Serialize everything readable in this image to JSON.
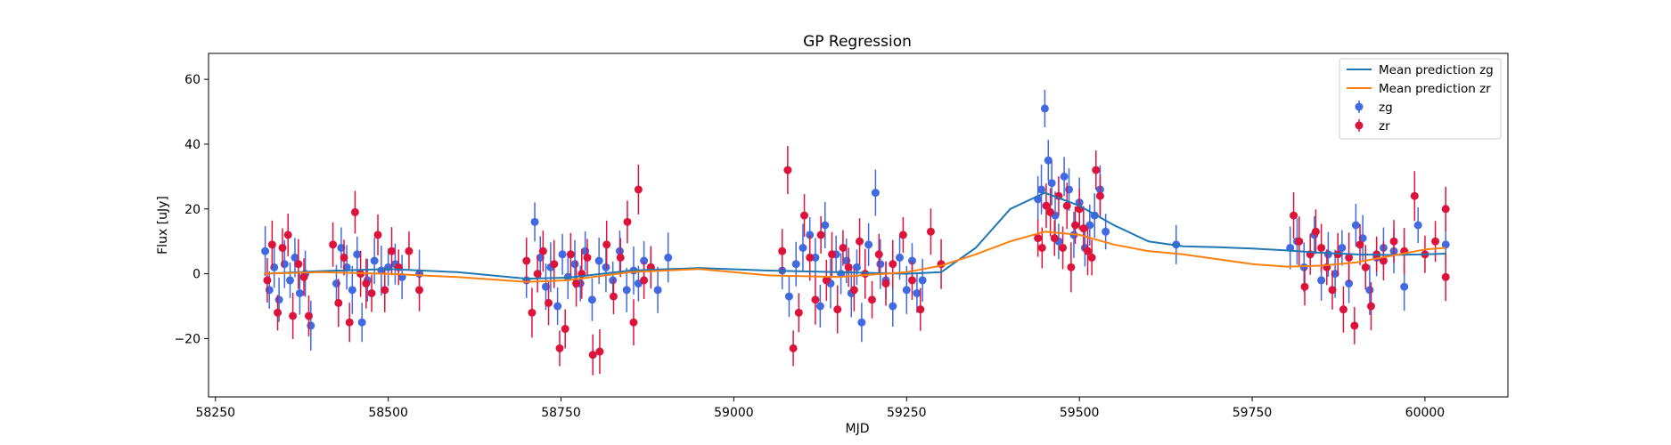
{
  "chart_data": {
    "type": "scatter",
    "title": "GP Regression",
    "xlabel": "MJD",
    "ylabel": "Flux [uJy]",
    "xlim": [
      58240,
      60120
    ],
    "ylim": [
      -38,
      68
    ],
    "xticks": [
      58250,
      58500,
      58750,
      59000,
      59250,
      59500,
      59750,
      60000
    ],
    "yticks": [
      -20,
      0,
      20,
      40,
      60
    ],
    "legend_position": "upper right",
    "grid": false,
    "series": [
      {
        "name": "Mean prediction zg",
        "kind": "line",
        "color": "#1f77b4",
        "x": [
          58320,
          58400,
          58500,
          58600,
          58700,
          58760,
          58850,
          58950,
          59050,
          59150,
          59250,
          59300,
          59350,
          59400,
          59450,
          59500,
          59550,
          59600,
          59650,
          59700,
          59750,
          59800,
          59850,
          59900,
          59950,
          60000,
          60030
        ],
        "y": [
          0,
          0.8,
          1.5,
          0.5,
          -1.5,
          -1.2,
          1.0,
          1.8,
          1.0,
          0.5,
          0.0,
          0.5,
          8,
          20,
          25,
          21,
          15,
          10,
          8.5,
          8.2,
          7.8,
          7.2,
          6.5,
          6.0,
          5.8,
          6.0,
          6.2
        ]
      },
      {
        "name": "Mean prediction zr",
        "kind": "line",
        "color": "#ff7f0e",
        "x": [
          58320,
          58400,
          58500,
          58600,
          58700,
          58760,
          58850,
          58950,
          59050,
          59150,
          59250,
          59300,
          59350,
          59400,
          59450,
          59500,
          59550,
          59600,
          59650,
          59700,
          59750,
          59800,
          59850,
          59900,
          59950,
          60000,
          60030
        ],
        "y": [
          0,
          0.5,
          0,
          -1.0,
          -2.5,
          -2.0,
          0.5,
          1.5,
          -0.5,
          -1.0,
          0.5,
          2.5,
          6,
          10,
          13,
          12,
          9,
          7,
          6,
          4.5,
          3,
          2.2,
          2.5,
          3.5,
          5.5,
          7.5,
          8
        ]
      },
      {
        "name": "zg",
        "kind": "errorbar",
        "color": "#4169e1",
        "x": [
          58322,
          58328,
          58335,
          58342,
          58350,
          58358,
          58365,
          58372,
          58380,
          58388,
          58425,
          58432,
          58440,
          58448,
          58455,
          58462,
          58470,
          58480,
          58490,
          58500,
          58510,
          58520,
          58545,
          58700,
          58712,
          58720,
          58728,
          58735,
          58745,
          58752,
          58760,
          58770,
          58778,
          58785,
          58795,
          58805,
          58815,
          58825,
          58835,
          58845,
          58855,
          58862,
          58870,
          58880,
          58890,
          58905,
          59070,
          59080,
          59090,
          59100,
          59110,
          59118,
          59125,
          59132,
          59140,
          59148,
          59155,
          59163,
          59170,
          59178,
          59185,
          59195,
          59205,
          59212,
          59220,
          59230,
          59240,
          59250,
          59258,
          59265,
          59273,
          59440,
          59445,
          59450,
          59455,
          59460,
          59465,
          59470,
          59478,
          59485,
          59492,
          59500,
          59508,
          59515,
          59522,
          59530,
          59538,
          59640,
          59805,
          59815,
          59825,
          59840,
          59850,
          59860,
          59870,
          59880,
          59890,
          59900,
          59910,
          59920,
          59930,
          59940,
          59955,
          59970,
          59990,
          60030
        ],
        "y": [
          7,
          -5,
          2,
          -8,
          3,
          -2,
          5,
          -6,
          0,
          -16,
          -3,
          8,
          2,
          -5,
          6,
          -15,
          -2,
          4,
          1,
          2,
          3,
          -1,
          0,
          -2,
          16,
          5,
          -4,
          2,
          -10,
          6,
          -1,
          3,
          -3,
          7,
          -8,
          4,
          2,
          -2,
          7,
          -5,
          1,
          -3,
          4,
          2,
          -5,
          5,
          1,
          -7,
          3,
          8,
          12,
          5,
          -10,
          15,
          -3,
          6,
          0,
          4,
          -6,
          2,
          -15,
          9,
          25,
          3,
          -2,
          -10,
          5,
          -5,
          4,
          -6,
          -2,
          23,
          26,
          51,
          35,
          28,
          18,
          10,
          30,
          26,
          12,
          22,
          8,
          15,
          18,
          26,
          13,
          9,
          8,
          10,
          2,
          12,
          -2,
          6,
          0,
          8,
          -3,
          15,
          11,
          -5,
          5,
          8,
          7,
          -4,
          15,
          9
        ]
      },
      {
        "name": "zr",
        "kind": "errorbar",
        "color": "#dc143c",
        "x": [
          58325,
          58332,
          58340,
          58347,
          58355,
          58362,
          58370,
          58378,
          58385,
          58420,
          58428,
          58436,
          58444,
          58452,
          58460,
          58468,
          58476,
          58485,
          58495,
          58505,
          58515,
          58530,
          58545,
          58700,
          58708,
          58716,
          58724,
          58732,
          58740,
          58748,
          58756,
          58764,
          58772,
          58780,
          58788,
          58796,
          58806,
          58816,
          58826,
          58836,
          58846,
          58855,
          58862,
          58870,
          58880,
          59070,
          59078,
          59086,
          59094,
          59102,
          59110,
          59118,
          59126,
          59134,
          59142,
          59150,
          59158,
          59166,
          59174,
          59182,
          59190,
          59200,
          59210,
          59220,
          59230,
          59245,
          59258,
          59270,
          59285,
          59300,
          59440,
          59446,
          59452,
          59458,
          59464,
          59470,
          59476,
          59482,
          59488,
          59494,
          59500,
          59506,
          59512,
          59518,
          59524,
          59530,
          59810,
          59818,
          59826,
          59834,
          59842,
          59850,
          59858,
          59866,
          59874,
          59882,
          59890,
          59898,
          59906,
          59914,
          59922,
          59930,
          59940,
          59955,
          59970,
          59985,
          60000,
          60015,
          60030,
          60030
        ],
        "y": [
          -2,
          9,
          -12,
          8,
          12,
          -13,
          3,
          -1,
          -13,
          9,
          -9,
          5,
          -15,
          19,
          0,
          -3,
          -6,
          12,
          -5,
          7,
          2,
          7,
          -5,
          4,
          -12,
          0,
          7,
          -9,
          3,
          -23,
          -17,
          6,
          -3,
          0,
          5,
          -25,
          -24,
          9,
          -7,
          5,
          16,
          -15,
          26,
          -2,
          2,
          7,
          32,
          -23,
          -12,
          18,
          5,
          -8,
          12,
          -2,
          6,
          -11,
          8,
          2,
          -5,
          10,
          0,
          -8,
          6,
          -3,
          3,
          12,
          -2,
          -11,
          13,
          3,
          11,
          8,
          21,
          19,
          11,
          24,
          8,
          21,
          2,
          15,
          20,
          14,
          7,
          5,
          32,
          24,
          18,
          10,
          -4,
          6,
          13,
          8,
          2,
          -5,
          6,
          -11,
          5,
          -16,
          9,
          2,
          -10,
          6,
          4,
          10,
          7,
          24,
          6,
          10,
          20,
          -1
        ]
      }
    ]
  }
}
